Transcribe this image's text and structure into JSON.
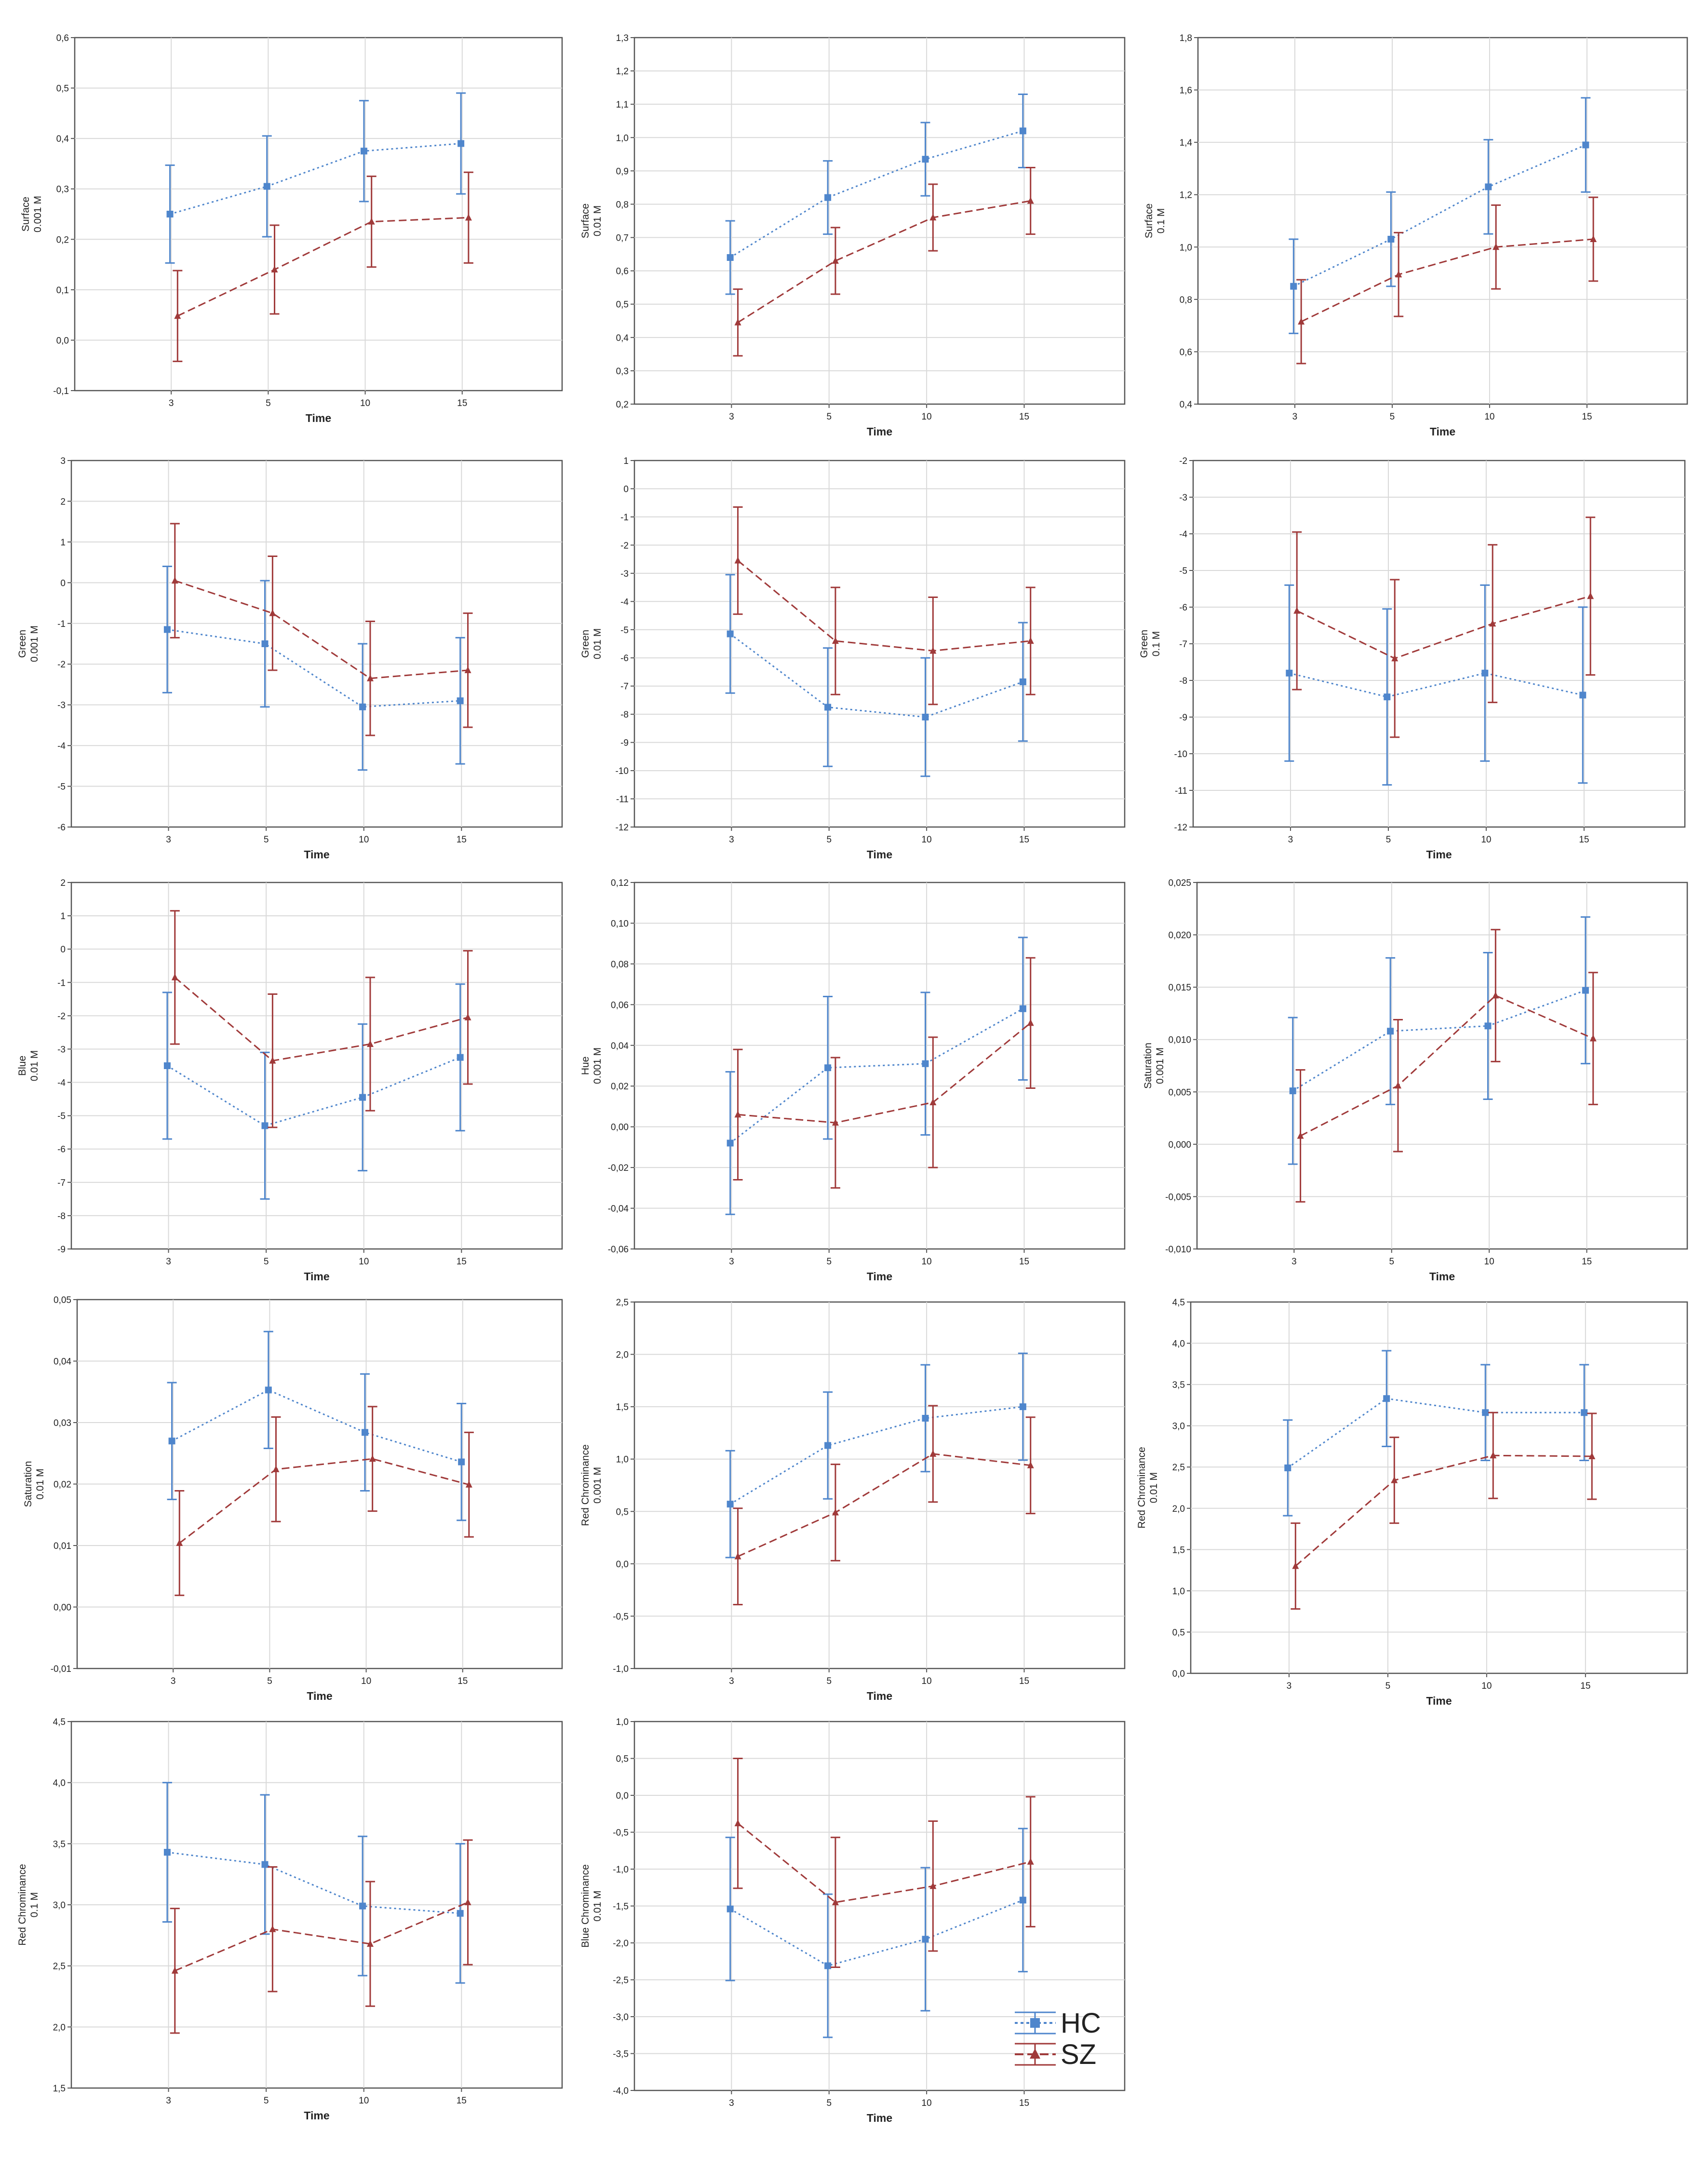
{
  "series_styles": {
    "HC": {
      "color": "#4f86cc",
      "marker": "square",
      "line": "dotted"
    },
    "SZ": {
      "color": "#a03a3a",
      "marker": "triangle",
      "line": "dashed"
    }
  },
  "legend": [
    "HC",
    "SZ"
  ],
  "chart_data": [
    {
      "type": "line",
      "ylabel": "Surface",
      "yunit": "0.001 M",
      "xlabel": "Time",
      "categories": [
        "3",
        "5",
        "10",
        "15"
      ],
      "ylim": [
        -0.1,
        0.6
      ],
      "ystep": 0.1,
      "ydec": 1,
      "grid": true,
      "series": [
        {
          "name": "HC",
          "values": [
            0.25,
            0.305,
            0.375,
            0.39
          ],
          "err": [
            0.097,
            0.1,
            0.1,
            0.1
          ]
        },
        {
          "name": "SZ",
          "values": [
            0.048,
            0.14,
            0.235,
            0.243
          ],
          "err": [
            0.09,
            0.088,
            0.09,
            0.09
          ]
        }
      ]
    },
    {
      "type": "line",
      "ylabel": "Surface",
      "yunit": "0.01 M",
      "xlabel": "Time",
      "categories": [
        "3",
        "5",
        "10",
        "15"
      ],
      "ylim": [
        0.2,
        1.3
      ],
      "ystep": 0.1,
      "ydec": 1,
      "grid": true,
      "series": [
        {
          "name": "HC",
          "values": [
            0.64,
            0.82,
            0.935,
            1.02
          ],
          "err": [
            0.11,
            0.11,
            0.11,
            0.11
          ]
        },
        {
          "name": "SZ",
          "values": [
            0.445,
            0.63,
            0.76,
            0.81
          ],
          "err": [
            0.1,
            0.1,
            0.1,
            0.1
          ]
        }
      ]
    },
    {
      "type": "line",
      "ylabel": "Surface",
      "yunit": "0.1 M",
      "xlabel": "Time",
      "categories": [
        "3",
        "5",
        "10",
        "15"
      ],
      "ylim": [
        0.4,
        1.8
      ],
      "ystep": 0.2,
      "ydec": 1,
      "grid": true,
      "series": [
        {
          "name": "HC",
          "values": [
            0.85,
            1.03,
            1.23,
            1.39
          ],
          "err": [
            0.18,
            0.18,
            0.18,
            0.18
          ]
        },
        {
          "name": "SZ",
          "values": [
            0.715,
            0.895,
            1.0,
            1.03
          ],
          "err": [
            0.16,
            0.16,
            0.16,
            0.16
          ]
        }
      ]
    },
    {
      "type": "line",
      "ylabel": "Green",
      "yunit": "0.001 M",
      "xlabel": "Time",
      "categories": [
        "3",
        "5",
        "10",
        "15"
      ],
      "ylim": [
        -6,
        3
      ],
      "ystep": 1,
      "ydec": 0,
      "grid": true,
      "series": [
        {
          "name": "HC",
          "values": [
            -1.15,
            -1.5,
            -3.05,
            -2.9
          ],
          "err": [
            1.55,
            1.55,
            1.55,
            1.55
          ]
        },
        {
          "name": "SZ",
          "values": [
            0.05,
            -0.75,
            -2.35,
            -2.15
          ],
          "err": [
            1.4,
            1.4,
            1.4,
            1.4
          ]
        }
      ]
    },
    {
      "type": "line",
      "ylabel": "Green",
      "yunit": "0.01 M",
      "xlabel": "Time",
      "categories": [
        "3",
        "5",
        "10",
        "15"
      ],
      "ylim": [
        -12,
        1
      ],
      "ystep": 1,
      "ydec": 0,
      "grid": true,
      "series": [
        {
          "name": "HC",
          "values": [
            -5.15,
            -7.75,
            -8.1,
            -6.85
          ],
          "err": [
            2.1,
            2.1,
            2.1,
            2.1
          ]
        },
        {
          "name": "SZ",
          "values": [
            -2.55,
            -5.4,
            -5.75,
            -5.4
          ],
          "err": [
            1.9,
            1.9,
            1.9,
            1.9
          ]
        }
      ]
    },
    {
      "type": "line",
      "ylabel": "Green",
      "yunit": "0.1 M",
      "xlabel": "Time",
      "categories": [
        "3",
        "5",
        "10",
        "15"
      ],
      "ylim": [
        -12,
        -2
      ],
      "ystep": 1,
      "ydec": 0,
      "grid": true,
      "series": [
        {
          "name": "HC",
          "values": [
            -7.8,
            -8.45,
            -7.8,
            -8.4
          ],
          "err": [
            2.4,
            2.4,
            2.4,
            2.4
          ]
        },
        {
          "name": "SZ",
          "values": [
            -6.1,
            -7.4,
            -6.45,
            -5.7
          ],
          "err": [
            2.15,
            2.15,
            2.15,
            2.15
          ]
        }
      ]
    },
    {
      "type": "line",
      "ylabel": "Blue",
      "yunit": "0.01 M",
      "xlabel": "Time",
      "categories": [
        "3",
        "5",
        "10",
        "15"
      ],
      "ylim": [
        -9,
        2
      ],
      "ystep": 1,
      "ydec": 0,
      "grid": true,
      "series": [
        {
          "name": "HC",
          "values": [
            -3.5,
            -5.3,
            -4.45,
            -3.25
          ],
          "err": [
            2.2,
            2.2,
            2.2,
            2.2
          ]
        },
        {
          "name": "SZ",
          "values": [
            -0.85,
            -3.35,
            -2.85,
            -2.05
          ],
          "err": [
            2.0,
            2.0,
            2.0,
            2.0
          ]
        }
      ]
    },
    {
      "type": "line",
      "ylabel": "Hue",
      "yunit": "0.001 M",
      "xlabel": "Time",
      "categories": [
        "3",
        "5",
        "10",
        "15"
      ],
      "ylim": [
        -0.06,
        0.12
      ],
      "ystep": 0.02,
      "ydec": 2,
      "grid": true,
      "series": [
        {
          "name": "HC",
          "values": [
            -0.008,
            0.029,
            0.031,
            0.058
          ],
          "err": [
            0.035,
            0.035,
            0.035,
            0.035
          ]
        },
        {
          "name": "SZ",
          "values": [
            0.006,
            0.002,
            0.012,
            0.051
          ],
          "err": [
            0.032,
            0.032,
            0.032,
            0.032
          ]
        }
      ]
    },
    {
      "type": "line",
      "ylabel": "Saturation",
      "yunit": "0.001 M",
      "xlabel": "Time",
      "categories": [
        "3",
        "5",
        "10",
        "15"
      ],
      "ylim": [
        -0.01,
        0.025
      ],
      "ystep": 0.005,
      "ydec": 3,
      "grid": true,
      "series": [
        {
          "name": "HC",
          "values": [
            0.0051,
            0.0108,
            0.0113,
            0.0147
          ],
          "err": [
            0.007,
            0.007,
            0.007,
            0.007
          ]
        },
        {
          "name": "SZ",
          "values": [
            0.0008,
            0.0056,
            0.0142,
            0.0101
          ],
          "err": [
            0.0063,
            0.0063,
            0.0063,
            0.0063
          ]
        }
      ]
    },
    {
      "type": "line",
      "ylabel": "Saturation",
      "yunit": "0.01 M",
      "xlabel": "Time",
      "categories": [
        "3",
        "5",
        "10",
        "15"
      ],
      "ylim": [
        -0.01,
        0.05
      ],
      "ystep": 0.01,
      "ydec": 2,
      "grid": true,
      "series": [
        {
          "name": "HC",
          "values": [
            0.027,
            0.0353,
            0.0284,
            0.0236
          ],
          "err": [
            0.0095,
            0.0095,
            0.0095,
            0.0095
          ]
        },
        {
          "name": "SZ",
          "values": [
            0.0104,
            0.0224,
            0.0241,
            0.0199
          ],
          "err": [
            0.0085,
            0.0085,
            0.0085,
            0.0085
          ]
        }
      ]
    },
    {
      "type": "line",
      "ylabel": "Red Chrominance",
      "yunit": "0.001 M",
      "xlabel": "Time",
      "categories": [
        "3",
        "5",
        "10",
        "15"
      ],
      "ylim": [
        -1,
        2.5
      ],
      "ystep": 0.5,
      "ydec": 1,
      "grid": true,
      "series": [
        {
          "name": "HC",
          "values": [
            0.57,
            1.13,
            1.39,
            1.5
          ],
          "err": [
            0.51,
            0.51,
            0.51,
            0.51
          ]
        },
        {
          "name": "SZ",
          "values": [
            0.07,
            0.49,
            1.05,
            0.94
          ],
          "err": [
            0.46,
            0.46,
            0.46,
            0.46
          ]
        }
      ]
    },
    {
      "type": "line",
      "ylabel": "Red Chrominance",
      "yunit": "0.01 M",
      "xlabel": "Time",
      "categories": [
        "3",
        "5",
        "10",
        "15"
      ],
      "ylim": [
        0,
        4.5
      ],
      "ystep": 0.5,
      "ydec": 1,
      "grid": true,
      "series": [
        {
          "name": "HC",
          "values": [
            2.49,
            3.33,
            3.16,
            3.16
          ],
          "err": [
            0.58,
            0.58,
            0.58,
            0.58
          ]
        },
        {
          "name": "SZ",
          "values": [
            1.3,
            2.34,
            2.64,
            2.63
          ],
          "err": [
            0.52,
            0.52,
            0.52,
            0.52
          ]
        }
      ]
    },
    {
      "type": "line",
      "ylabel": "Red Chrominance",
      "yunit": "0.1 M",
      "xlabel": "Time",
      "categories": [
        "3",
        "5",
        "10",
        "15"
      ],
      "ylim": [
        1.5,
        4.5
      ],
      "ystep": 0.5,
      "ydec": 1,
      "grid": true,
      "series": [
        {
          "name": "HC",
          "values": [
            3.43,
            3.33,
            2.99,
            2.93
          ],
          "err": [
            0.57,
            0.57,
            0.57,
            0.57
          ]
        },
        {
          "name": "SZ",
          "values": [
            2.46,
            2.8,
            2.68,
            3.02
          ],
          "err": [
            0.51,
            0.51,
            0.51,
            0.51
          ]
        }
      ]
    },
    {
      "type": "line",
      "ylabel": "Blue Chrominance",
      "yunit": "0.01 M",
      "xlabel": "Time",
      "categories": [
        "3",
        "5",
        "10",
        "15"
      ],
      "ylim": [
        -4,
        1
      ],
      "ystep": 0.5,
      "ydec": 1,
      "grid": true,
      "series": [
        {
          "name": "HC",
          "values": [
            -1.54,
            -2.31,
            -1.95,
            -1.42
          ],
          "err": [
            0.97,
            0.97,
            0.97,
            0.97
          ]
        },
        {
          "name": "SZ",
          "values": [
            -0.38,
            -1.45,
            -1.23,
            -0.9
          ],
          "err": [
            0.88,
            0.88,
            0.88,
            0.88
          ]
        }
      ]
    }
  ]
}
